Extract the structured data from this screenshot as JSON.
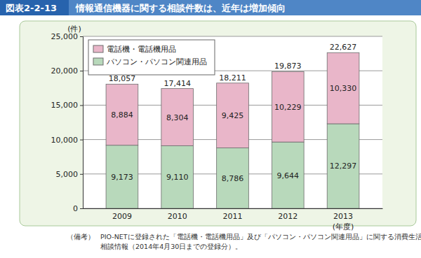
{
  "chart_data": {
    "type": "bar",
    "figure_label": "図表2-2-13",
    "title": "情報通信機器に関する相談件数は、近年は増加傾向",
    "y_label": "(件)",
    "x_label": "(年度)",
    "categories": [
      "2009",
      "2010",
      "2011",
      "2012",
      "2013"
    ],
    "series": [
      {
        "name": "パソコン・パソコン関連用品",
        "color": "#b8d9bb",
        "values": [
          9173,
          9110,
          8786,
          9644,
          12297
        ],
        "value_labels": [
          "9,173",
          "9,110",
          "8,786",
          "9,644",
          "12,297"
        ]
      },
      {
        "name": "電話機・電話機用品",
        "color": "#e9b6c9",
        "values": [
          8884,
          8304,
          9425,
          10229,
          10330
        ],
        "value_labels": [
          "8,884",
          "8,304",
          "9,425",
          "10,229",
          "10,330"
        ]
      }
    ],
    "totals": [
      18057,
      17414,
      18211,
      19873,
      22627
    ],
    "total_labels": [
      "18,057",
      "17,414",
      "18,211",
      "19,873",
      "22,627"
    ],
    "stacked": true,
    "data_labels": true,
    "grid": true,
    "legend": "top-left",
    "ylim": [
      0,
      25000
    ],
    "yticks": [
      0,
      {
        "value": 5000,
        "label": "5,000"
      },
      {
        "value": 10000,
        "label": "10,000"
      },
      {
        "value": 15000,
        "label": "15,000"
      },
      {
        "value": 20000,
        "label": "20,000"
      },
      {
        "value": 25000,
        "label": "25,000"
      }
    ],
    "note": [
      "（備考）",
      "PIO-NETに登録された「電話機・電話機用品」及び「パソコン・パソコン関連用品」に関する消費生活",
      "相談情報（2014年4月30日までの登録分）。"
    ]
  }
}
